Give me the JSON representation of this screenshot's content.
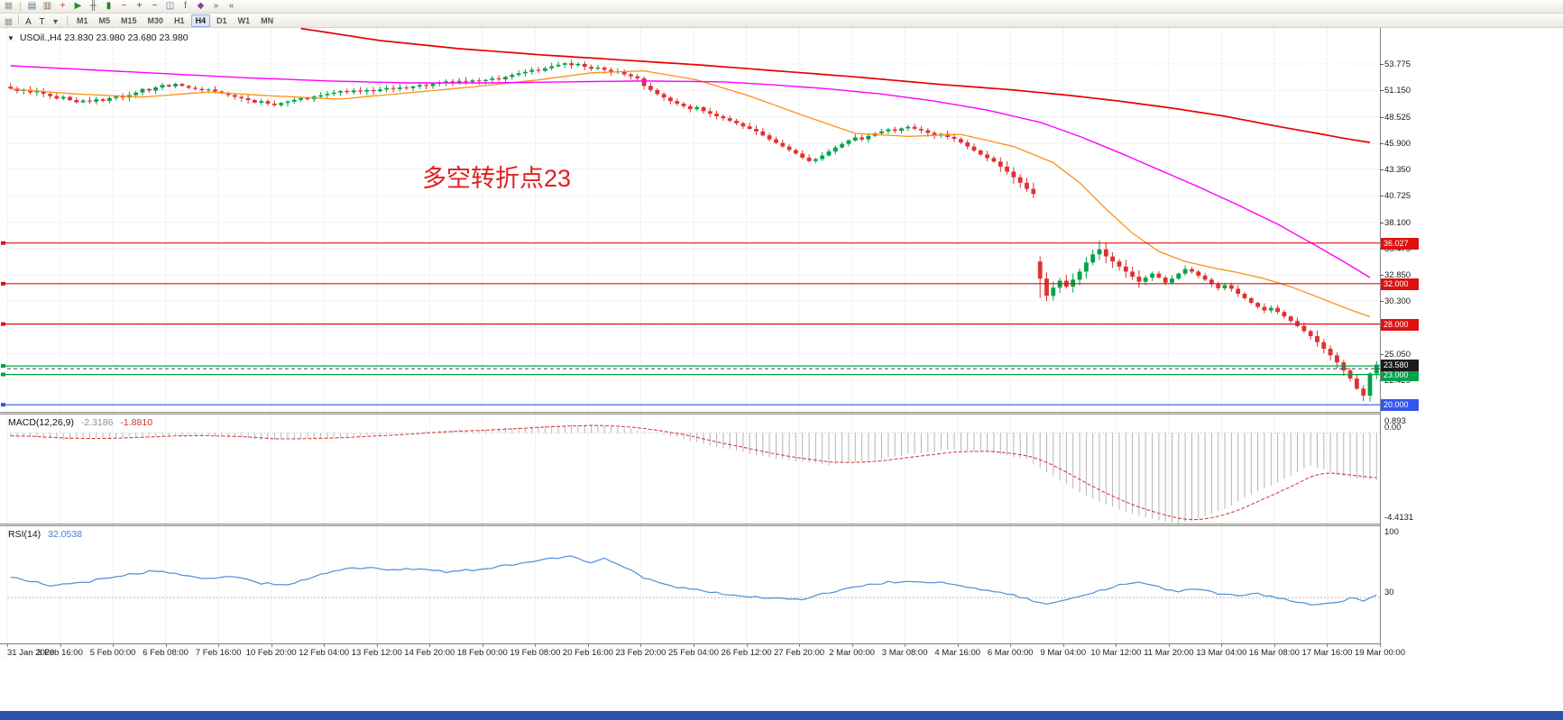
{
  "toolbar": {
    "row1_icons": [
      {
        "name": "drag-handle-icon",
        "glyph": "▦",
        "color": "#9a9789"
      },
      {
        "name": "new-chart-icon",
        "glyph": "▤",
        "color": "#4f6f94"
      },
      {
        "name": "profiles-icon",
        "glyph": "▥",
        "color": "#7b6a4f"
      },
      {
        "name": "new-order-icon",
        "glyph": "+",
        "color": "#c03535"
      },
      {
        "name": "autotrading-icon",
        "glyph": "▶",
        "color": "#2e8b2e"
      },
      {
        "name": "bar-chart-icon",
        "glyph": "╫",
        "color": "#555555"
      },
      {
        "name": "candlestick-chart-icon",
        "glyph": "▮",
        "color": "#2e7d32"
      },
      {
        "name": "line-chart-icon",
        "glyph": "~",
        "color": "#b03030"
      },
      {
        "name": "zoom-in-icon",
        "glyph": "+",
        "color": "#444444"
      },
      {
        "name": "zoom-out-icon",
        "glyph": "−",
        "color": "#444444"
      },
      {
        "name": "tile-windows-icon",
        "glyph": "◫",
        "color": "#4f6f94"
      },
      {
        "name": "indicators-icon",
        "glyph": "f",
        "color": "#2e7d32"
      },
      {
        "name": "templates-icon",
        "glyph": "◆",
        "color": "#7a4a8a"
      },
      {
        "name": "scroll-to-end-icon",
        "glyph": "»",
        "color": "#555555"
      },
      {
        "name": "shift-chart-icon",
        "glyph": "«",
        "color": "#555555"
      }
    ],
    "row2_icons": [
      {
        "name": "drag-handle-icon",
        "glyph": "▦",
        "color": "#9a9789"
      },
      {
        "name": "text-tool-icon",
        "glyph": "A",
        "color": "#333333"
      },
      {
        "name": "pointer-tool-icon",
        "glyph": "T",
        "color": "#333333"
      },
      {
        "name": "chevron-down-icon",
        "glyph": "▾",
        "color": "#555555"
      }
    ],
    "timeframes": [
      "M1",
      "M5",
      "M15",
      "M30",
      "H1",
      "H4",
      "D1",
      "W1",
      "MN"
    ],
    "active_timeframe": "H4"
  },
  "chart_data": {
    "type": "candlestick",
    "symbol": "USOil",
    "timeframe": "H4",
    "header_line": "USOil.,H4  23.830 23.980 23.680 23.980",
    "main": {
      "ylim": [
        19.3,
        57.35
      ],
      "y_ticks": [
        "53.775",
        "51.150",
        "48.525",
        "45.900",
        "43.350",
        "40.725",
        "38.100",
        "35.475",
        "32.850",
        "30.300",
        "27.675",
        "25.050",
        "22.425"
      ],
      "up_color": "#00a24a",
      "down_color": "#e03131",
      "closes": [
        51.35,
        51.1,
        51.22,
        50.95,
        51.05,
        50.82,
        50.6,
        50.35,
        50.52,
        50.2,
        49.98,
        50.15,
        50.05,
        50.28,
        50.12,
        50.4,
        50.55,
        50.45,
        50.7,
        50.95,
        51.3,
        51.15,
        51.45,
        51.7,
        51.55,
        51.8,
        51.6,
        51.42,
        51.3,
        51.18,
        51.25,
        51.05,
        50.88,
        50.7,
        50.52,
        50.38,
        50.2,
        49.95,
        50.1,
        49.85,
        49.7,
        49.92,
        50.05,
        50.22,
        50.4,
        50.28,
        50.55,
        50.68,
        50.82,
        50.95,
        51.1,
        50.98,
        51.15,
        51.05,
        51.2,
        51.08,
        51.25,
        51.4,
        51.3,
        51.45,
        51.38,
        51.55,
        51.7,
        51.6,
        51.82,
        51.95,
        52.05,
        51.9,
        52.1,
        52.0,
        52.15,
        52.08,
        52.2,
        52.35,
        52.25,
        52.5,
        52.7,
        52.85,
        53.0,
        53.2,
        53.1,
        53.35,
        53.55,
        53.7,
        53.85,
        53.65,
        53.78,
        53.5,
        53.3,
        53.42,
        53.2,
        52.95,
        53.05,
        52.75,
        52.55,
        52.35,
        51.6,
        51.2,
        50.8,
        50.45,
        50.1,
        49.85,
        49.6,
        49.3,
        49.5,
        49.1,
        48.85,
        48.6,
        48.4,
        48.15,
        47.9,
        47.6,
        47.35,
        47.1,
        46.7,
        46.3,
        45.95,
        45.6,
        45.25,
        44.9,
        44.5,
        44.15,
        44.35,
        44.7,
        45.1,
        45.5,
        45.85,
        46.2,
        46.5,
        46.3,
        46.65,
        46.9,
        47.1,
        47.3,
        47.15,
        47.4,
        47.55,
        47.35,
        47.2,
        46.95,
        46.7,
        46.85,
        46.55,
        46.35,
        46.0,
        45.6,
        45.2,
        44.8,
        44.45,
        44.1,
        43.6,
        43.1,
        42.55,
        42.0,
        41.4,
        40.9,
        32.5,
        30.8,
        31.6,
        32.3,
        31.7,
        32.4,
        33.2,
        34.1,
        34.9,
        35.4,
        34.7,
        34.2,
        33.7,
        33.2,
        32.7,
        32.2,
        32.6,
        33.0,
        32.6,
        32.1,
        32.5,
        33.0,
        33.45,
        33.2,
        32.8,
        32.4,
        31.95,
        31.55,
        31.85,
        31.5,
        31.0,
        30.55,
        30.1,
        29.7,
        29.35,
        29.6,
        29.2,
        28.75,
        28.3,
        27.8,
        27.3,
        26.8,
        26.2,
        25.55,
        24.9,
        24.2,
        23.4,
        22.6,
        21.6,
        20.9,
        23.1,
        23.98
      ],
      "open_overrides": {
        "156": 34.2
      },
      "high_overrides": {
        "165": 36.3
      },
      "low_overrides": {
        "156": 30.6,
        "205": 20.35
      },
      "ma_fast": {
        "color": "#ff9018",
        "anchors": [
          [
            0,
            51.3
          ],
          [
            10,
            50.8
          ],
          [
            20,
            50.5
          ],
          [
            30,
            51.0
          ],
          [
            40,
            50.6
          ],
          [
            50,
            50.3
          ],
          [
            60,
            50.9
          ],
          [
            70,
            51.5
          ],
          [
            80,
            52.2
          ],
          [
            88,
            52.9
          ],
          [
            96,
            53.1
          ],
          [
            104,
            52.2
          ],
          [
            112,
            50.6
          ],
          [
            120,
            48.7
          ],
          [
            128,
            46.9
          ],
          [
            136,
            46.6
          ],
          [
            144,
            46.8
          ],
          [
            152,
            45.6
          ],
          [
            158,
            44.0
          ],
          [
            162,
            42.0
          ],
          [
            166,
            39.4
          ],
          [
            170,
            37.0
          ],
          [
            174,
            35.2
          ],
          [
            178,
            34.2
          ],
          [
            182,
            33.6
          ],
          [
            186,
            33.1
          ],
          [
            190,
            32.5
          ],
          [
            194,
            31.7
          ],
          [
            198,
            30.7
          ],
          [
            203,
            29.4
          ],
          [
            207,
            28.5
          ]
        ]
      },
      "ma_mid": {
        "color": "#ff00ff",
        "anchors": [
          [
            0,
            53.6
          ],
          [
            12,
            53.2
          ],
          [
            24,
            52.8
          ],
          [
            36,
            52.4
          ],
          [
            48,
            52.1
          ],
          [
            60,
            51.9
          ],
          [
            72,
            51.9
          ],
          [
            84,
            52.0
          ],
          [
            96,
            52.1
          ],
          [
            108,
            52.0
          ],
          [
            116,
            51.7
          ],
          [
            124,
            51.3
          ],
          [
            132,
            50.8
          ],
          [
            140,
            50.1
          ],
          [
            148,
            49.2
          ],
          [
            156,
            48.0
          ],
          [
            162,
            46.6
          ],
          [
            168,
            45.0
          ],
          [
            174,
            43.3
          ],
          [
            180,
            41.6
          ],
          [
            186,
            39.8
          ],
          [
            192,
            37.9
          ],
          [
            198,
            35.7
          ],
          [
            203,
            33.8
          ],
          [
            207,
            32.2
          ]
        ]
      },
      "ma_slow": {
        "color": "#e80000",
        "anchors": [
          [
            44,
            57.3
          ],
          [
            56,
            56.1
          ],
          [
            68,
            55.3
          ],
          [
            80,
            54.7
          ],
          [
            92,
            54.2
          ],
          [
            104,
            53.7
          ],
          [
            116,
            53.1
          ],
          [
            128,
            52.5
          ],
          [
            140,
            51.8
          ],
          [
            152,
            51.2
          ],
          [
            160,
            50.7
          ],
          [
            168,
            50.1
          ],
          [
            176,
            49.4
          ],
          [
            184,
            48.6
          ],
          [
            192,
            47.6
          ],
          [
            198,
            46.9
          ],
          [
            203,
            46.3
          ],
          [
            207,
            45.9
          ]
        ]
      },
      "hlines": [
        {
          "value": 36.027,
          "color": "#dd1111",
          "label": "36.027"
        },
        {
          "value": 32.0,
          "color": "#dd1111",
          "label": "32.000"
        },
        {
          "value": 28.0,
          "color": "#dd1111",
          "label": "28.000"
        },
        {
          "value": 23.85,
          "color": "#00a24a",
          "label": null
        },
        {
          "value": 23.0,
          "color": "#00a24a",
          "label": "23.000"
        },
        {
          "value": 20.0,
          "color": "#3355ee",
          "label": "20.000"
        }
      ],
      "bid": {
        "value": 23.58,
        "label": "23.580",
        "chip_bg": "#1a1a1a"
      },
      "annotation": {
        "text": "多空转折点23",
        "color": "#e02020"
      }
    },
    "macd": {
      "label": "MACD(12,26,9)",
      "value_main": "-2.3186",
      "value_signal": "-1.8810",
      "ylim": [
        -4.4131,
        0.893
      ],
      "ticks": [
        "0.893",
        "0.00",
        "-4.4131"
      ],
      "hist_color": "#b4b4b4",
      "signal_color": "#d84040",
      "anchors": [
        [
          0,
          -0.15
        ],
        [
          8,
          -0.3
        ],
        [
          16,
          -0.22
        ],
        [
          24,
          -0.1
        ],
        [
          32,
          -0.18
        ],
        [
          40,
          -0.35
        ],
        [
          48,
          -0.22
        ],
        [
          56,
          -0.08
        ],
        [
          64,
          0.08
        ],
        [
          72,
          0.18
        ],
        [
          80,
          0.32
        ],
        [
          88,
          0.38
        ],
        [
          94,
          0.2
        ],
        [
          100,
          -0.15
        ],
        [
          106,
          -0.6
        ],
        [
          112,
          -1.0
        ],
        [
          118,
          -1.35
        ],
        [
          124,
          -1.55
        ],
        [
          130,
          -1.35
        ],
        [
          136,
          -1.05
        ],
        [
          142,
          -0.85
        ],
        [
          148,
          -0.9
        ],
        [
          154,
          -1.3
        ],
        [
          158,
          -2.1
        ],
        [
          162,
          -2.9
        ],
        [
          166,
          -3.5
        ],
        [
          170,
          -3.95
        ],
        [
          174,
          -4.25
        ],
        [
          177,
          -4.41
        ],
        [
          180,
          -4.2
        ],
        [
          184,
          -3.7
        ],
        [
          188,
          -3.0
        ],
        [
          192,
          -2.4
        ],
        [
          195,
          -1.9
        ],
        [
          197,
          -1.6
        ],
        [
          199,
          -1.75
        ],
        [
          201,
          -2.05
        ],
        [
          204,
          -2.2
        ],
        [
          207,
          -2.32
        ]
      ]
    },
    "rsi": {
      "label": "RSI(14)",
      "value": "32.0538",
      "ylim": [
        -15,
        100
      ],
      "ticks": [
        "100",
        "30"
      ],
      "level": 30,
      "color": "#4a90d9",
      "anchors": [
        [
          0,
          50
        ],
        [
          3,
          46
        ],
        [
          6,
          42
        ],
        [
          10,
          44
        ],
        [
          14,
          48
        ],
        [
          18,
          53
        ],
        [
          22,
          56
        ],
        [
          26,
          52
        ],
        [
          30,
          49
        ],
        [
          34,
          50
        ],
        [
          38,
          44
        ],
        [
          42,
          43
        ],
        [
          46,
          50
        ],
        [
          50,
          57
        ],
        [
          54,
          60
        ],
        [
          58,
          57
        ],
        [
          62,
          59
        ],
        [
          66,
          55
        ],
        [
          70,
          57
        ],
        [
          74,
          60
        ],
        [
          78,
          64
        ],
        [
          82,
          68
        ],
        [
          85,
          70
        ],
        [
          88,
          65
        ],
        [
          90,
          68
        ],
        [
          93,
          60
        ],
        [
          96,
          50
        ],
        [
          100,
          42
        ],
        [
          104,
          37
        ],
        [
          108,
          34
        ],
        [
          112,
          31
        ],
        [
          116,
          29
        ],
        [
          120,
          27
        ],
        [
          124,
          35
        ],
        [
          128,
          40
        ],
        [
          132,
          44
        ],
        [
          136,
          47
        ],
        [
          140,
          45
        ],
        [
          144,
          42
        ],
        [
          148,
          37
        ],
        [
          152,
          33
        ],
        [
          156,
          24
        ],
        [
          159,
          26
        ],
        [
          162,
          31
        ],
        [
          165,
          37
        ],
        [
          168,
          42
        ],
        [
          171,
          45
        ],
        [
          174,
          40
        ],
        [
          177,
          36
        ],
        [
          180,
          39
        ],
        [
          183,
          34
        ],
        [
          186,
          31
        ],
        [
          189,
          34
        ],
        [
          192,
          29
        ],
        [
          195,
          26
        ],
        [
          198,
          23
        ],
        [
          200,
          25
        ],
        [
          203,
          29
        ],
        [
          205,
          27
        ],
        [
          207,
          32.05
        ]
      ]
    },
    "time_labels": [
      "31 Jan 2020",
      "3 Feb 16:00",
      "5 Feb 00:00",
      "6 Feb 08:00",
      "7 Feb 16:00",
      "10 Feb 20:00",
      "12 Feb 04:00",
      "13 Feb 12:00",
      "14 Feb 20:00",
      "18 Feb 00:00",
      "19 Feb 08:00",
      "20 Feb 16:00",
      "23 Feb 20:00",
      "25 Feb 04:00",
      "26 Feb 12:00",
      "27 Feb 20:00",
      "2 Mar 00:00",
      "3 Mar 08:00",
      "4 Mar 16:00",
      "6 Mar 00:00",
      "9 Mar 04:00",
      "10 Mar 12:00",
      "11 Mar 20:00",
      "13 Mar 04:00",
      "16 Mar 08:00",
      "17 Mar 16:00",
      "19 Mar 00:00"
    ]
  }
}
